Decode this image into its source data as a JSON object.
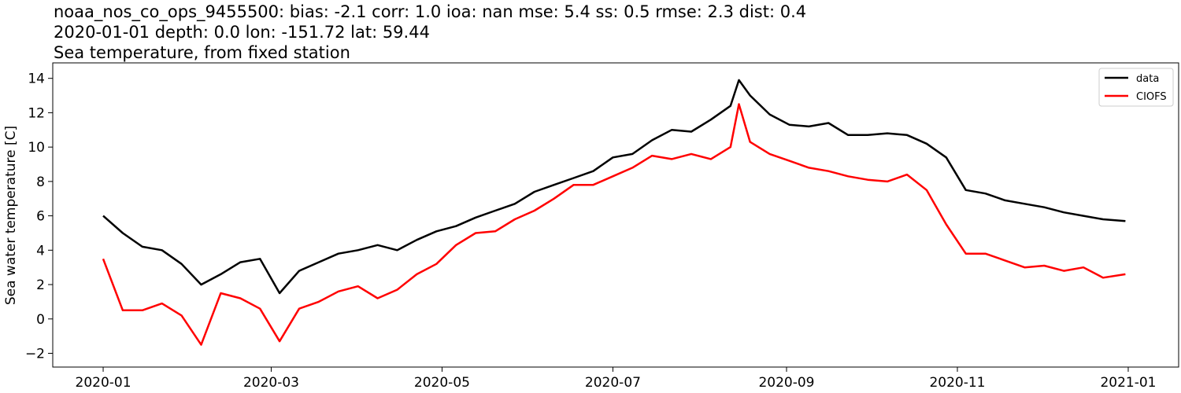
{
  "chart_data": {
    "type": "line",
    "title_lines": [
      "noaa_nos_co_ops_9455500: bias: -2.1  corr: 1.0  ioa: nan  mse: 5.4  ss: 0.5  rmse: 2.3  dist: 0.4",
      "2020-01-01 depth: 0.0 lon: -151.72 lat: 59.44",
      "Sea temperature, from fixed station"
    ],
    "xlabel": "",
    "ylabel": "Sea water temperature [C]",
    "x_axis_type": "date",
    "xlim": [
      "2019-12-14",
      "2021-01-19"
    ],
    "ylim": [
      -2.8,
      14.9
    ],
    "x_ticks": [
      "2020-01-01",
      "2020-03-01",
      "2020-05-01",
      "2020-07-01",
      "2020-09-01",
      "2020-11-01",
      "2021-01-01"
    ],
    "x_tick_labels": [
      "2020-01",
      "2020-03",
      "2020-05",
      "2020-07",
      "2020-09",
      "2020-11",
      "2021-01"
    ],
    "y_ticks": [
      -2,
      0,
      2,
      4,
      6,
      8,
      10,
      12,
      14
    ],
    "y_tick_labels": [
      "−2",
      "0",
      "2",
      "4",
      "6",
      "8",
      "10",
      "12",
      "14"
    ],
    "grid": false,
    "legend_position": "top-right",
    "series": [
      {
        "name": "data",
        "color": "#000000",
        "x": [
          "2020-01-01",
          "2020-01-08",
          "2020-01-15",
          "2020-01-22",
          "2020-01-29",
          "2020-02-05",
          "2020-02-12",
          "2020-02-19",
          "2020-02-26",
          "2020-03-04",
          "2020-03-11",
          "2020-03-18",
          "2020-03-25",
          "2020-04-01",
          "2020-04-08",
          "2020-04-15",
          "2020-04-22",
          "2020-04-29",
          "2020-05-06",
          "2020-05-13",
          "2020-05-20",
          "2020-05-27",
          "2020-06-03",
          "2020-06-10",
          "2020-06-17",
          "2020-06-24",
          "2020-07-01",
          "2020-07-08",
          "2020-07-15",
          "2020-07-22",
          "2020-07-29",
          "2020-08-05",
          "2020-08-12",
          "2020-08-15",
          "2020-08-19",
          "2020-08-26",
          "2020-09-02",
          "2020-09-09",
          "2020-09-16",
          "2020-09-23",
          "2020-09-30",
          "2020-10-07",
          "2020-10-14",
          "2020-10-21",
          "2020-10-28",
          "2020-11-04",
          "2020-11-11",
          "2020-11-18",
          "2020-11-25",
          "2020-12-02",
          "2020-12-09",
          "2020-12-16",
          "2020-12-23",
          "2020-12-31"
        ],
        "values": [
          6.0,
          5.0,
          4.2,
          4.0,
          3.2,
          2.0,
          2.6,
          3.3,
          3.5,
          1.5,
          2.8,
          3.3,
          3.8,
          4.0,
          4.3,
          4.0,
          4.6,
          5.1,
          5.4,
          5.9,
          6.3,
          6.7,
          7.4,
          7.8,
          8.2,
          8.6,
          9.4,
          9.6,
          10.4,
          11.0,
          10.9,
          11.6,
          12.4,
          13.9,
          13.0,
          11.9,
          11.3,
          11.2,
          11.4,
          10.7,
          10.7,
          10.8,
          10.7,
          10.2,
          9.4,
          7.5,
          7.3,
          6.9,
          6.7,
          6.5,
          6.2,
          6.0,
          5.8,
          5.7
        ]
      },
      {
        "name": "CIOFS",
        "color": "#ff0000",
        "x": [
          "2020-01-01",
          "2020-01-08",
          "2020-01-15",
          "2020-01-22",
          "2020-01-29",
          "2020-02-05",
          "2020-02-12",
          "2020-02-19",
          "2020-02-26",
          "2020-03-04",
          "2020-03-11",
          "2020-03-18",
          "2020-03-25",
          "2020-04-01",
          "2020-04-08",
          "2020-04-15",
          "2020-04-22",
          "2020-04-29",
          "2020-05-06",
          "2020-05-13",
          "2020-05-20",
          "2020-05-27",
          "2020-06-03",
          "2020-06-10",
          "2020-06-17",
          "2020-06-24",
          "2020-07-01",
          "2020-07-08",
          "2020-07-15",
          "2020-07-22",
          "2020-07-29",
          "2020-08-05",
          "2020-08-12",
          "2020-08-15",
          "2020-08-19",
          "2020-08-26",
          "2020-09-02",
          "2020-09-09",
          "2020-09-16",
          "2020-09-23",
          "2020-09-30",
          "2020-10-07",
          "2020-10-14",
          "2020-10-21",
          "2020-10-28",
          "2020-11-04",
          "2020-11-11",
          "2020-11-18",
          "2020-11-25",
          "2020-12-02",
          "2020-12-09",
          "2020-12-16",
          "2020-12-23",
          "2020-12-31"
        ],
        "values": [
          3.5,
          0.5,
          0.5,
          0.9,
          0.2,
          -1.5,
          1.5,
          1.2,
          0.6,
          -1.3,
          0.6,
          1.0,
          1.6,
          1.9,
          1.2,
          1.7,
          2.6,
          3.2,
          4.3,
          5.0,
          5.1,
          5.8,
          6.3,
          7.0,
          7.8,
          7.8,
          8.3,
          8.8,
          9.5,
          9.3,
          9.6,
          9.3,
          10.0,
          12.5,
          10.3,
          9.6,
          9.2,
          8.8,
          8.6,
          8.3,
          8.1,
          8.0,
          8.4,
          7.5,
          5.5,
          3.8,
          3.8,
          3.4,
          3.0,
          3.1,
          2.8,
          3.0,
          2.4,
          2.6
        ]
      }
    ]
  }
}
